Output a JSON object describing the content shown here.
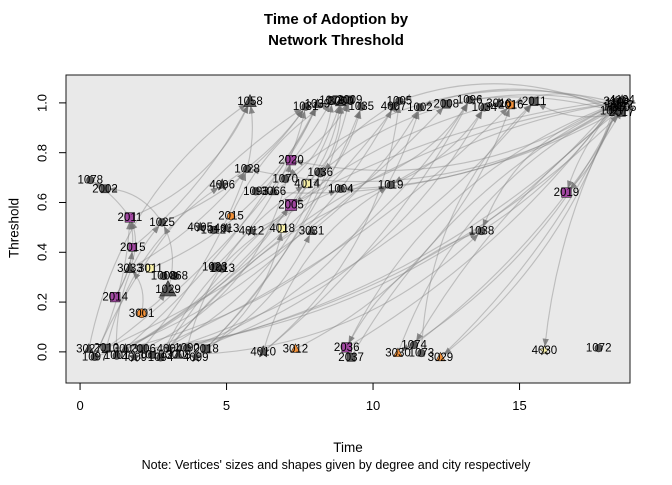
{
  "title": {
    "line1": "Time of Adoption by",
    "line2": "Network Threshold"
  },
  "note": "Note: Vertices' sizes and shapes given by degree and city respectively",
  "axes": {
    "x": {
      "label": "Time",
      "tick_values": [
        0,
        5,
        10,
        15
      ],
      "tick_labels": [
        "0",
        "5",
        "10",
        "15"
      ],
      "range": [
        -0.48,
        18.77
      ]
    },
    "y": {
      "label": "Threshold",
      "tick_values": [
        0,
        0.2,
        0.4,
        0.6,
        0.8,
        1.0
      ],
      "tick_labels": [
        "0.0",
        "0.2",
        "0.4",
        "0.6",
        "0.8",
        "1.0"
      ],
      "range": [
        -0.125,
        1.112
      ]
    }
  },
  "colors": {
    "panel_bg": "#E9E9E9",
    "panel_border": "#1a1a1a",
    "edge": "#808080",
    "arrow": "#6f6f6f",
    "dark": "#474747",
    "purple": "#993399",
    "orange": "#F28522",
    "yellow": "#FAF3A0",
    "label": "#000000"
  },
  "chart_data": {
    "type": "scatter",
    "subtype": "directed-network-over-axes",
    "title": "Time of Adoption by Network Threshold",
    "xlabel": "Time",
    "ylabel": "Threshold",
    "xlim": [
      -0.48,
      18.77
    ],
    "ylim": [
      -0.125,
      1.112
    ],
    "grid": false,
    "legend": false,
    "node_format": [
      "label",
      "time",
      "threshold",
      "shape(c=circle,s=square,t=triangle,r=star)",
      "color(d=dark,p=purple,o=orange,y=yellow)",
      "size"
    ],
    "nodes": [
      [
        "1058",
        5.8,
        1.005,
        "t",
        "d",
        7
      ],
      [
        "1031",
        7.7,
        0.985,
        "c",
        "d",
        5
      ],
      [
        "1039",
        8.1,
        0.995,
        "t",
        "d",
        5
      ],
      [
        "1079",
        8.6,
        1.01,
        "s",
        "d",
        5
      ],
      [
        "3000",
        8.9,
        1.005,
        "t",
        "d",
        6
      ],
      [
        "2009",
        9.2,
        1.012,
        "s",
        "d",
        5
      ],
      [
        "1035",
        9.6,
        0.985,
        "c",
        "d",
        5
      ],
      [
        "4007",
        10.7,
        0.985,
        "r",
        "d",
        5
      ],
      [
        "1005",
        10.9,
        1.008,
        "c",
        "d",
        5
      ],
      [
        "1002",
        11.6,
        0.982,
        "c",
        "d",
        5
      ],
      [
        "2008",
        12.5,
        0.995,
        "s",
        "d",
        5
      ],
      [
        "1096",
        13.3,
        1.012,
        "c",
        "d",
        5
      ],
      [
        "1034",
        13.8,
        0.982,
        "c",
        "d",
        5
      ],
      [
        "3016",
        14.3,
        0.998,
        "t",
        "d",
        5
      ],
      [
        "2016",
        14.7,
        0.992,
        "s",
        "o",
        5
      ],
      [
        "2011",
        15.5,
        1.005,
        "s",
        "d",
        5
      ],
      [
        "3143",
        18.3,
        1.006,
        "t",
        "d",
        5
      ],
      [
        "2142",
        18.45,
        0.992,
        "s",
        "d",
        5
      ],
      [
        "1147",
        18.25,
        0.984,
        "c",
        "d",
        5
      ],
      [
        "4104",
        18.5,
        1.012,
        "r",
        "d",
        5
      ],
      [
        "1102",
        18.35,
        1.0,
        "c",
        "d",
        5
      ],
      [
        "3105",
        18.55,
        0.982,
        "t",
        "d",
        5
      ],
      [
        "2017",
        18.48,
        0.962,
        "s",
        "d",
        5
      ],
      [
        "1027",
        18.18,
        0.968,
        "c",
        "d",
        5
      ],
      [
        "1078",
        0.35,
        0.69,
        "c",
        "d",
        5
      ],
      [
        "2002",
        0.85,
        0.655,
        "s",
        "d",
        5
      ],
      [
        "4006",
        4.85,
        0.67,
        "r",
        "d",
        6
      ],
      [
        "1028",
        5.7,
        0.735,
        "c",
        "d",
        5
      ],
      [
        "2020",
        7.2,
        0.77,
        "s",
        "p",
        6
      ],
      [
        "1036",
        8.2,
        0.72,
        "c",
        "d",
        6
      ],
      [
        "1070",
        7.0,
        0.695,
        "c",
        "d",
        5
      ],
      [
        "4014",
        7.75,
        0.675,
        "s",
        "y",
        5
      ],
      [
        "1093",
        6.0,
        0.645,
        "c",
        "d",
        5
      ],
      [
        "3066",
        6.6,
        0.645,
        "t",
        "d",
        5
      ],
      [
        "1004",
        8.9,
        0.655,
        "c",
        "d",
        5
      ],
      [
        "1019",
        10.6,
        0.67,
        "c",
        "d",
        5
      ],
      [
        "2005",
        7.2,
        0.59,
        "s",
        "p",
        7
      ],
      [
        "2019",
        16.6,
        0.64,
        "s",
        "p",
        6
      ],
      [
        "2011",
        1.7,
        0.54,
        "s",
        "p",
        6
      ],
      [
        "1025",
        2.8,
        0.52,
        "c",
        "d",
        5
      ],
      [
        "4005",
        4.1,
        0.5,
        "r",
        "d",
        5
      ],
      [
        "1012",
        4.55,
        0.49,
        "c",
        "d",
        5
      ],
      [
        "4013",
        5.0,
        0.495,
        "r",
        "d",
        5
      ],
      [
        "2015",
        5.15,
        0.545,
        "c",
        "o",
        5
      ],
      [
        "4012",
        5.85,
        0.485,
        "r",
        "d",
        5
      ],
      [
        "4018",
        6.9,
        0.495,
        "s",
        "y",
        5
      ],
      [
        "3031",
        7.9,
        0.485,
        "t",
        "d",
        5
      ],
      [
        "1038",
        13.7,
        0.485,
        "c",
        "d",
        5
      ],
      [
        "2015",
        1.8,
        0.42,
        "s",
        "p",
        5
      ],
      [
        "3033",
        1.7,
        0.335,
        "t",
        "d",
        6
      ],
      [
        "3011",
        2.4,
        0.335,
        "s",
        "y",
        5
      ],
      [
        "1008",
        2.85,
        0.305,
        "c",
        "d",
        5
      ],
      [
        "1068",
        3.25,
        0.305,
        "c",
        "d",
        5
      ],
      [
        "1023",
        4.6,
        0.34,
        "c",
        "d",
        6
      ],
      [
        "1013",
        4.85,
        0.335,
        "c",
        "d",
        5
      ],
      [
        "1029",
        3.0,
        0.25,
        "t",
        "d",
        9
      ],
      [
        "2014",
        1.2,
        0.22,
        "s",
        "p",
        6
      ],
      [
        "3001",
        2.1,
        0.155,
        "c",
        "o",
        6
      ],
      [
        "3027",
        0.3,
        0.012,
        "t",
        "d",
        5
      ],
      [
        "1097",
        0.5,
        -0.02,
        "c",
        "d",
        5
      ],
      [
        "2010",
        0.9,
        0.015,
        "s",
        "d",
        5
      ],
      [
        "1001",
        1.25,
        -0.015,
        "c",
        "d",
        5
      ],
      [
        "3003",
        1.55,
        0.012,
        "t",
        "d",
        5
      ],
      [
        "4009",
        1.85,
        -0.022,
        "r",
        "d",
        5
      ],
      [
        "2006",
        2.15,
        0.012,
        "s",
        "d",
        5
      ],
      [
        "1010",
        2.45,
        -0.012,
        "c",
        "d",
        5
      ],
      [
        "1094",
        2.75,
        -0.022,
        "c",
        "d",
        5
      ],
      [
        "4004",
        3.05,
        0.012,
        "r",
        "d",
        5
      ],
      [
        "3008",
        3.35,
        -0.012,
        "t",
        "d",
        5
      ],
      [
        "1090",
        3.65,
        0.015,
        "c",
        "d",
        5
      ],
      [
        "4099",
        3.95,
        -0.022,
        "r",
        "d",
        5
      ],
      [
        "2018",
        4.3,
        0.012,
        "s",
        "d",
        5
      ],
      [
        "4010",
        6.25,
        0.0,
        "r",
        "d",
        6
      ],
      [
        "3012",
        7.35,
        0.012,
        "t",
        "o",
        5
      ],
      [
        "2036",
        9.1,
        0.018,
        "s",
        "p",
        6
      ],
      [
        "2037",
        9.25,
        -0.022,
        "s",
        "d",
        5
      ],
      [
        "3030",
        10.85,
        -0.005,
        "t",
        "o",
        5
      ],
      [
        "1074",
        11.4,
        0.028,
        "c",
        "d",
        5
      ],
      [
        "1073",
        11.65,
        -0.005,
        "c",
        "d",
        5
      ],
      [
        "3029",
        12.3,
        -0.022,
        "t",
        "o",
        5
      ],
      [
        "4030",
        15.85,
        0.005,
        "r",
        "y",
        5
      ],
      [
        "1072",
        17.7,
        0.015,
        "c",
        "d",
        5
      ]
    ],
    "edges": [
      [
        58,
        0
      ],
      [
        59,
        1
      ],
      [
        60,
        3
      ],
      [
        61,
        8
      ],
      [
        62,
        11
      ],
      [
        63,
        14
      ],
      [
        64,
        16
      ],
      [
        65,
        17
      ],
      [
        66,
        20
      ],
      [
        67,
        15
      ],
      [
        68,
        12
      ],
      [
        69,
        9
      ],
      [
        70,
        5
      ],
      [
        71,
        6
      ],
      [
        61,
        2
      ],
      [
        62,
        4
      ],
      [
        59,
        7
      ],
      [
        60,
        10
      ],
      [
        66,
        13
      ],
      [
        67,
        22
      ],
      [
        59,
        38
      ],
      [
        61,
        39
      ],
      [
        62,
        36
      ],
      [
        63,
        27
      ],
      [
        64,
        28
      ],
      [
        65,
        29
      ],
      [
        66,
        34
      ],
      [
        67,
        35
      ],
      [
        68,
        47
      ],
      [
        69,
        31
      ],
      [
        70,
        45
      ],
      [
        71,
        46
      ],
      [
        60,
        26
      ],
      [
        72,
        8
      ],
      [
        72,
        11
      ],
      [
        73,
        14
      ],
      [
        74,
        16
      ],
      [
        75,
        20
      ],
      [
        76,
        17
      ],
      [
        77,
        21
      ],
      [
        78,
        15
      ],
      [
        79,
        19
      ],
      [
        72,
        35
      ],
      [
        74,
        47
      ],
      [
        16,
        37
      ],
      [
        17,
        47
      ],
      [
        20,
        35
      ],
      [
        19,
        34
      ],
      [
        21,
        29
      ],
      [
        16,
        28
      ],
      [
        17,
        27
      ],
      [
        20,
        30
      ],
      [
        21,
        32
      ],
      [
        19,
        36
      ],
      [
        17,
        80
      ],
      [
        20,
        74
      ],
      [
        16,
        79
      ],
      [
        21,
        77
      ],
      [
        19,
        76
      ],
      [
        18,
        37
      ],
      [
        22,
        15
      ],
      [
        22,
        14
      ],
      [
        23,
        11
      ],
      [
        22,
        9
      ],
      [
        23,
        8
      ],
      [
        38,
        0
      ],
      [
        39,
        1
      ],
      [
        48,
        0
      ],
      [
        49,
        27
      ],
      [
        43,
        3
      ],
      [
        36,
        4
      ],
      [
        28,
        5
      ],
      [
        56,
        38
      ],
      [
        57,
        55
      ],
      [
        55,
        39
      ],
      [
        53,
        1
      ],
      [
        50,
        2
      ],
      [
        44,
        6
      ],
      [
        45,
        8
      ],
      [
        46,
        9
      ],
      [
        34,
        11
      ],
      [
        35,
        12
      ],
      [
        47,
        16
      ],
      [
        29,
        4
      ],
      [
        27,
        0
      ],
      [
        26,
        1
      ],
      [
        32,
        2
      ],
      [
        33,
        3
      ],
      [
        38,
        24
      ],
      [
        39,
        25
      ],
      [
        49,
        38
      ],
      [
        56,
        48
      ],
      [
        57,
        49
      ]
    ]
  }
}
